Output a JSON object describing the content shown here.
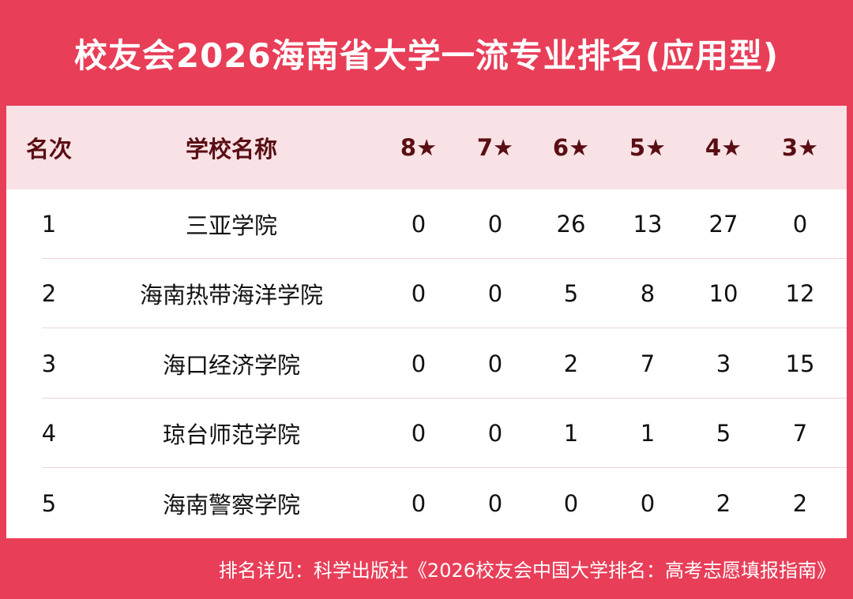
{
  "title": "校友会2026海南省大学一流专业排名(应用型)",
  "headers": [
    "名次",
    "学校名称",
    "8★",
    "7★",
    "6★",
    "5★",
    "4★",
    "3★"
  ],
  "rows": [
    [
      "1",
      "三亚学院",
      "0",
      "0",
      "26",
      "13",
      "27",
      "0"
    ],
    [
      "2",
      "海南热带海洋学院",
      "0",
      "0",
      "5",
      "8",
      "10",
      "12"
    ],
    [
      "3",
      "海口经济学院",
      "0",
      "0",
      "2",
      "7",
      "3",
      "15"
    ],
    [
      "4",
      "琼台师范学院",
      "0",
      "0",
      "1",
      "1",
      "5",
      "7"
    ],
    [
      "5",
      "海南警察学院",
      "0",
      "0",
      "0",
      "0",
      "2",
      "2"
    ]
  ],
  "footer": "排名详见：科学出版社《2026校友会中国大学排名：高考志愿填报指南》",
  "colors": {
    "brand_red": "#e83e58",
    "header_bg": "#f9e2e5",
    "header_text": "#5a0e14"
  }
}
